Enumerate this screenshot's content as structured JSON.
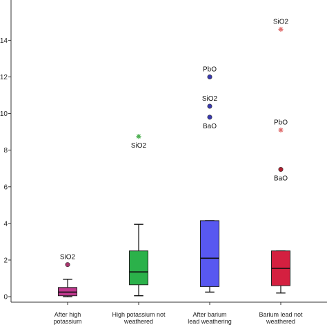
{
  "chart_data": {
    "type": "boxplot",
    "title": "",
    "xlabel": "",
    "ylabel": "",
    "ylim": [
      -0.3,
      16.2
    ],
    "yticks": [
      0,
      2,
      4,
      6,
      8,
      10,
      12,
      14
    ],
    "ytick_labels": [
      "0",
      "2",
      "4",
      "6",
      "8",
      "10",
      "12",
      "14"
    ],
    "grid": false,
    "categories": [
      {
        "line1": "After high",
        "line2": "potassium"
      },
      {
        "line1": "High potassium not",
        "line2": "weathered"
      },
      {
        "line1": "After barium",
        "line2": "lead weathering"
      },
      {
        "line1": "Barium lead not",
        "line2": "weathered"
      }
    ],
    "series": [
      {
        "category_index": 0,
        "color": "#c0398f",
        "whisker_low": 0.0,
        "q1": 0.05,
        "median": 0.25,
        "q3": 0.5,
        "whisker_high": 0.95,
        "outliers": [
          {
            "label": "SiO2",
            "value": 1.75,
            "marker": "circle",
            "color": "#a8356d",
            "label_pos": "above"
          }
        ]
      },
      {
        "category_index": 1,
        "color": "#2bb14a",
        "whisker_low": 0.05,
        "q1": 0.65,
        "median": 1.35,
        "q3": 2.5,
        "whisker_high": 3.95,
        "outliers": [
          {
            "label": "SiO2",
            "value": 8.75,
            "marker": "star",
            "color": "#4caf50",
            "label_pos": "below"
          }
        ]
      },
      {
        "category_index": 2,
        "color": "#5858f0",
        "whisker_low": 0.25,
        "q1": 0.55,
        "median": 2.1,
        "q3": 4.15,
        "whisker_high": 4.15,
        "outliers": [
          {
            "label": "PbO",
            "value": 12.0,
            "marker": "circle",
            "color": "#3a3ab0",
            "label_pos": "above"
          },
          {
            "label": "SiO2",
            "value": 10.4,
            "marker": "circle",
            "color": "#3a3ab0",
            "label_pos": "above"
          },
          {
            "label": "BaO",
            "value": 9.8,
            "marker": "circle",
            "color": "#3a3ab0",
            "label_pos": "below"
          }
        ]
      },
      {
        "category_index": 3,
        "color": "#d42040",
        "whisker_low": 0.2,
        "q1": 0.6,
        "median": 1.55,
        "q3": 2.5,
        "whisker_high": 2.5,
        "outliers": [
          {
            "label": "SiO2",
            "value": 14.6,
            "marker": "star",
            "color": "#e07070",
            "label_pos": "above"
          },
          {
            "label": "PbO",
            "value": 9.1,
            "marker": "star",
            "color": "#e07070",
            "label_pos": "above"
          },
          {
            "label": "BaO",
            "value": 6.95,
            "marker": "circle",
            "color": "#b02030",
            "label_pos": "below"
          }
        ]
      }
    ]
  }
}
